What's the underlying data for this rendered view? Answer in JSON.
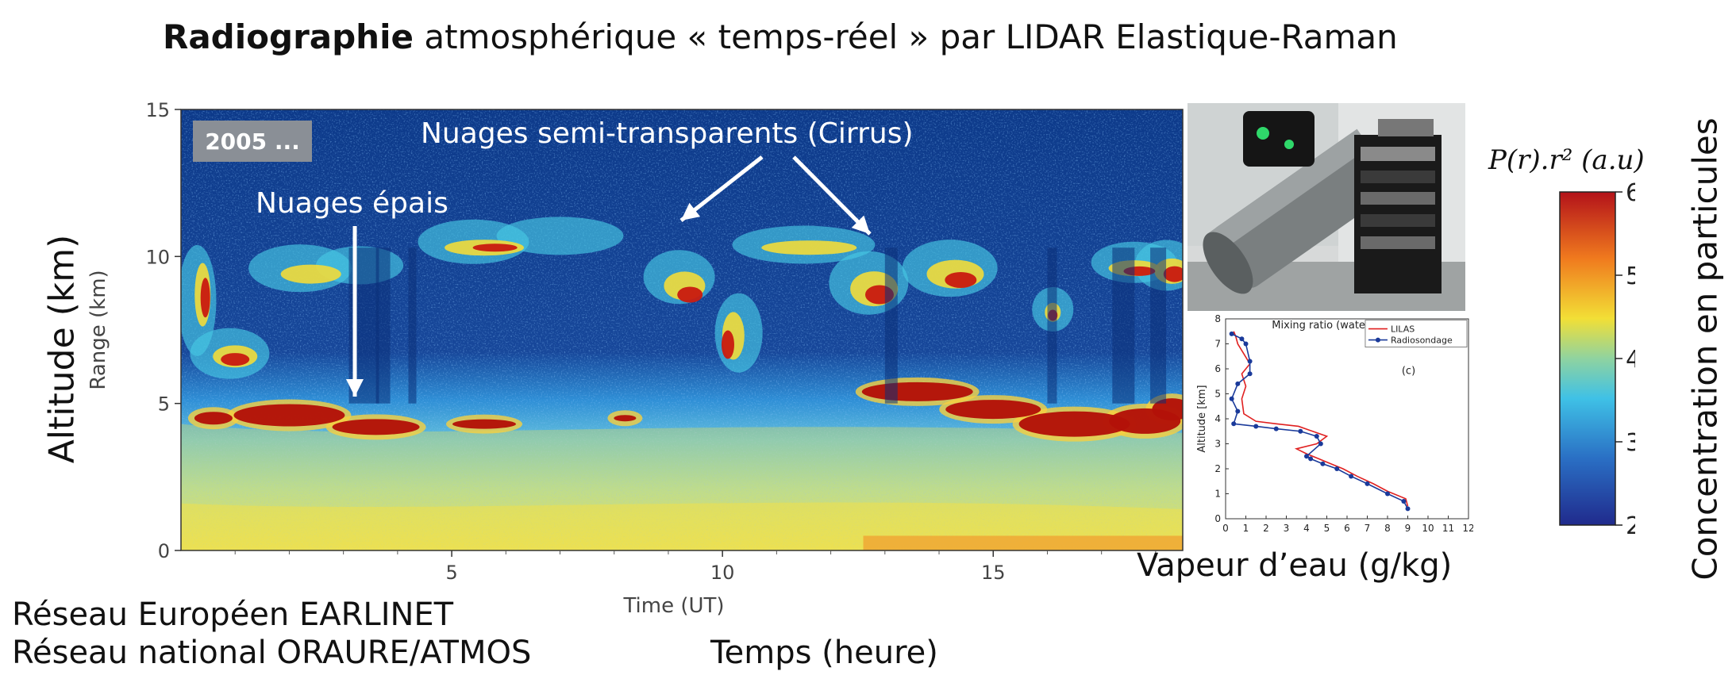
{
  "header": {
    "title_bold": "Radiographie",
    "title_rest": "atmosphérique « temps-réel » par LIDAR Elastique-Raman"
  },
  "side_label_left": "Altitude (km)",
  "side_label_right": "Concentration en particules",
  "footer": {
    "network_1": "Réseau Européen EARLINET",
    "network_2": "Réseau national ORAURE/ATMOS",
    "time_caption": "Temps (heure)",
    "vapor_caption": "Vapeur d’eau (g/kg)"
  },
  "colorbar": {
    "title": "P(r).r² (a.u)",
    "ticks": [
      "2",
      "3",
      "4",
      "5",
      "6"
    ],
    "range": [
      2,
      6
    ],
    "colormap": "jet"
  },
  "colors": {
    "background_dark": "#0d3a8a",
    "background_mid": "#1f6fc6",
    "aerosol_layer": "#7cc8d8",
    "cloud_red": "#c81a10",
    "label_box": "#8a8f96",
    "annotation_text": "#ffffff"
  },
  "chart_data": [
    {
      "type": "heatmap",
      "subject": "LIDAR range-corrected signal",
      "xlabel": "Time  (UT)",
      "ylabel": "Range (km)",
      "xlim": [
        0,
        18.5
      ],
      "ylim": [
        0,
        15
      ],
      "x_ticks": [
        "5",
        "10",
        "15"
      ],
      "y_ticks": [
        "0",
        "5",
        "10",
        "15"
      ],
      "badge": "2005 ...",
      "annotations": [
        {
          "text": "Nuages semi-transparents (Cirrus)"
        },
        {
          "text": "Nuages épais"
        }
      ],
      "features": [
        {
          "name": "boundary layer aerosol",
          "x": [
            0,
            18.5
          ],
          "top_km": 4.5
        },
        {
          "name": "thick clouds",
          "x": [
            0.1,
            5.0
          ],
          "altitude_km": [
            3.6,
            5.0
          ]
        },
        {
          "name": "thick clouds",
          "x": [
            12.5,
            18.5
          ],
          "altitude_km": [
            3.5,
            6.5
          ]
        },
        {
          "name": "cirrus",
          "x": [
            0,
            18.5
          ],
          "altitude_km": [
            6.5,
            11
          ]
        }
      ]
    },
    {
      "type": "line",
      "title": "Mixing ratio (water vapor)",
      "panel_label": "(c)",
      "xlabel": "",
      "ylabel": "Altitude [km]",
      "xlim": [
        0,
        12
      ],
      "ylim": [
        0,
        8
      ],
      "x_ticks": [
        "0",
        "1",
        "2",
        "3",
        "4",
        "5",
        "6",
        "7",
        "8",
        "9",
        "10",
        "11",
        "12"
      ],
      "y_ticks": [
        "0",
        "1",
        "2",
        "3",
        "4",
        "5",
        "6",
        "7",
        "8"
      ],
      "series": [
        {
          "name": "LILAS",
          "color": "#e02020",
          "x": [
            9.0,
            8.9,
            8.0,
            7.3,
            6.5,
            5.8,
            5.2,
            4.6,
            4.0,
            3.5,
            4.5,
            5.0,
            4.3,
            3.6,
            2.5,
            1.5,
            0.9,
            0.8,
            1.0,
            0.8,
            1.2,
            0.9,
            0.6,
            0.5,
            0.4
          ],
          "y": [
            0.5,
            0.8,
            1.1,
            1.4,
            1.7,
            2.0,
            2.2,
            2.4,
            2.6,
            2.8,
            3.0,
            3.3,
            3.5,
            3.7,
            3.8,
            3.9,
            4.2,
            4.8,
            5.3,
            5.8,
            6.2,
            6.6,
            7.0,
            7.3,
            7.5
          ]
        },
        {
          "name": "Radiosondage",
          "color": "#1a3a9a",
          "x": [
            9.0,
            8.8,
            8.0,
            7.0,
            6.2,
            5.5,
            4.8,
            4.2,
            4.0,
            4.7,
            4.5,
            3.7,
            2.5,
            1.5,
            0.4,
            0.6,
            0.3,
            0.6,
            1.2,
            1.2,
            1.0,
            0.8,
            0.3
          ],
          "y": [
            0.4,
            0.7,
            1.0,
            1.4,
            1.7,
            2.0,
            2.2,
            2.4,
            2.5,
            3.0,
            3.3,
            3.5,
            3.6,
            3.7,
            3.8,
            4.3,
            4.8,
            5.4,
            5.8,
            6.3,
            7.0,
            7.2,
            7.4
          ]
        }
      ]
    }
  ]
}
